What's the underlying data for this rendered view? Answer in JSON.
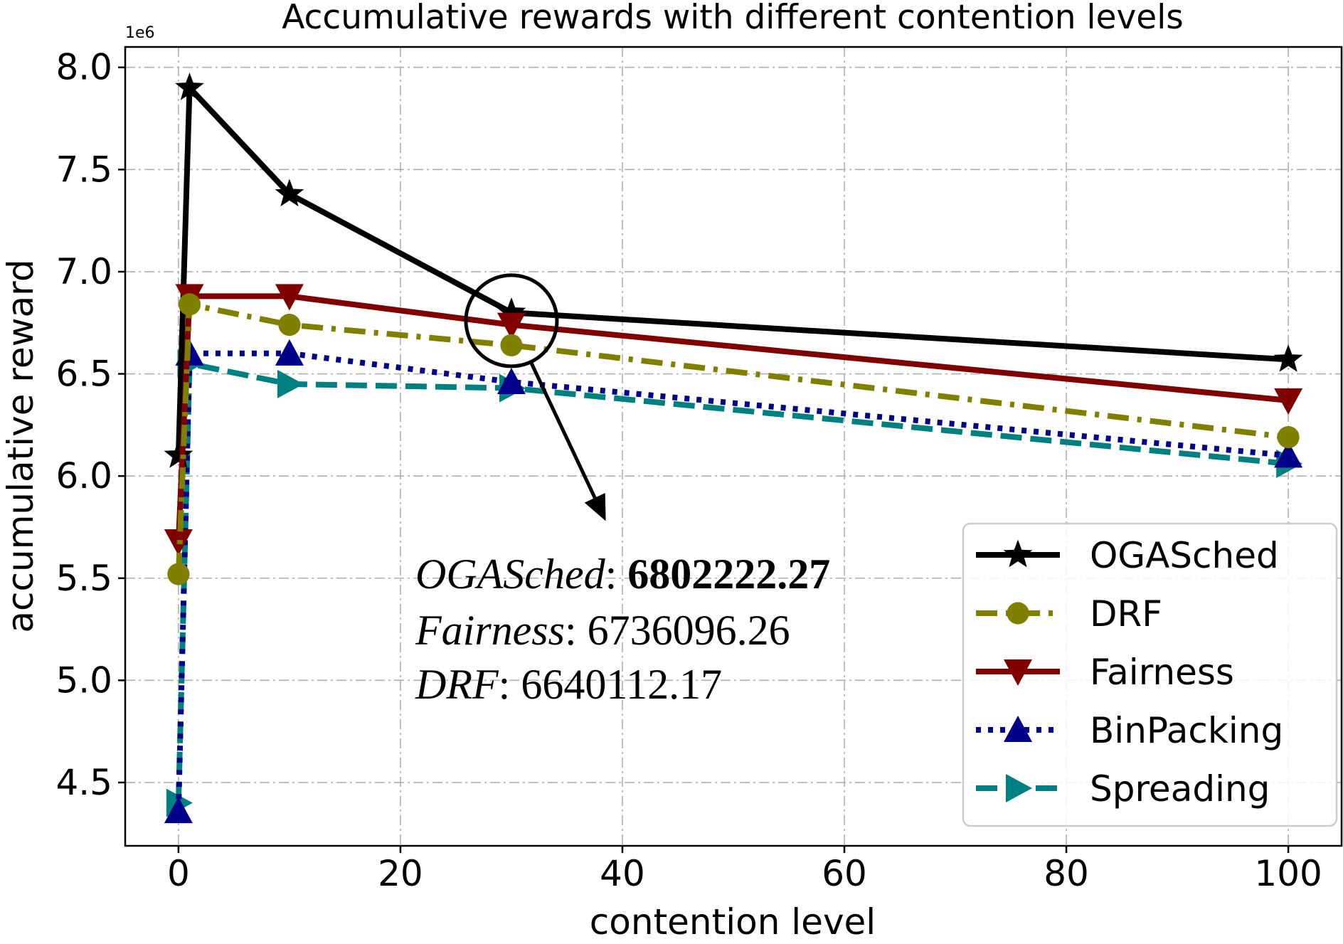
{
  "chart_data": {
    "type": "line",
    "title": "Accumulative rewards with different contention levels",
    "xlabel": "contention level",
    "ylabel": "accumulative reward",
    "y_scale_label": "1e6",
    "y_scale": 1000000,
    "xlim": [
      -4.8,
      104.8
    ],
    "ylim": [
      4.19,
      8.1
    ],
    "x_ticks": [
      0,
      20,
      40,
      60,
      80,
      100
    ],
    "x_tick_labels": [
      "0",
      "20",
      "40",
      "60",
      "80",
      "100"
    ],
    "y_ticks": [
      4.5,
      5.0,
      5.5,
      6.0,
      6.5,
      7.0,
      7.5,
      8.0
    ],
    "y_tick_labels": [
      "4.5",
      "5.0",
      "5.5",
      "6.0",
      "6.5",
      "7.0",
      "7.5",
      "8.0"
    ],
    "grid": true,
    "legend_position": "lower-right",
    "x": [
      0,
      1,
      10,
      30,
      100
    ],
    "series": [
      {
        "name": "OGASched",
        "values": [
          6.1,
          7.9,
          7.38,
          6.8,
          6.57
        ],
        "color": "#000000",
        "dash": "solid",
        "marker": "star"
      },
      {
        "name": "DRF",
        "values": [
          5.52,
          6.84,
          6.74,
          6.64,
          6.19
        ],
        "color": "#808000",
        "dash": "dashdot",
        "marker": "circle"
      },
      {
        "name": "Fairness",
        "values": [
          5.68,
          6.88,
          6.88,
          6.74,
          6.37
        ],
        "color": "#800000",
        "dash": "solid",
        "marker": "triangle-down"
      },
      {
        "name": "BinPacking",
        "values": [
          4.36,
          6.6,
          6.6,
          6.46,
          6.1
        ],
        "color": "#00008b",
        "dash": "dotted",
        "marker": "triangle-up"
      },
      {
        "name": "Spreading",
        "values": [
          4.4,
          6.55,
          6.45,
          6.43,
          6.06
        ],
        "color": "#008080",
        "dash": "dashed",
        "marker": "triangle-right"
      }
    ],
    "annotation": {
      "circle_at": {
        "x": 30,
        "y": 6.76
      },
      "arrow_to": {
        "x": 38.5,
        "y": 5.78
      },
      "lines": [
        {
          "name": "OGASched",
          "value": "6802222.27",
          "bold_value": true
        },
        {
          "name": "Fairness",
          "value": "6736096.26",
          "bold_value": false
        },
        {
          "name": "DRF",
          "value": "6640112.17",
          "bold_value": false
        }
      ]
    }
  }
}
